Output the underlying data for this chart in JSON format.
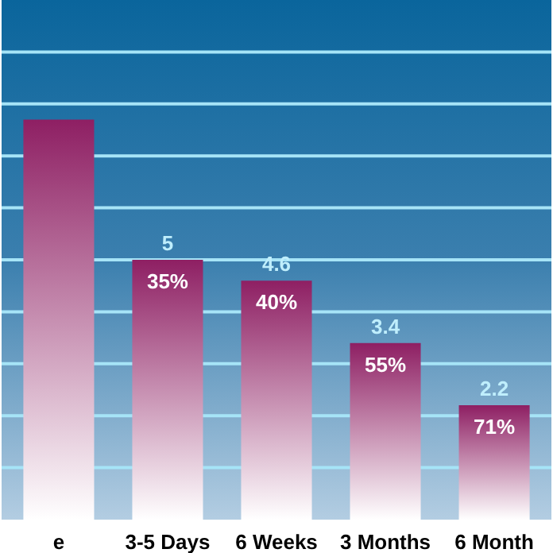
{
  "chart_data": {
    "type": "bar",
    "categories": [
      "e",
      "3-5 Days",
      "6 Weeks",
      "3 Months",
      "6 Month"
    ],
    "values": [
      7.7,
      5,
      4.6,
      3.4,
      2.2
    ],
    "value_labels": [
      null,
      "5",
      "4.6",
      "3.4",
      "2.2"
    ],
    "color": "#8e1f63",
    "ylim": [
      0,
      10
    ],
    "yticks": [
      {
        "value": 1,
        "label": null
      },
      {
        "value": 2,
        "label": null
      },
      {
        "value": 3,
        "label": null
      },
      {
        "value": 4,
        "label": null
      },
      {
        "value": 5,
        "label": null
      },
      {
        "value": 6,
        "label": null
      },
      {
        "value": 7,
        "label": null
      },
      {
        "value": 8,
        "label": null
      },
      {
        "value": 9,
        "label": null
      }
    ],
    "tick_labels": "x",
    "grid": "y",
    "annotations": [
      "35%",
      "40%",
      "55%",
      "71%"
    ]
  }
}
